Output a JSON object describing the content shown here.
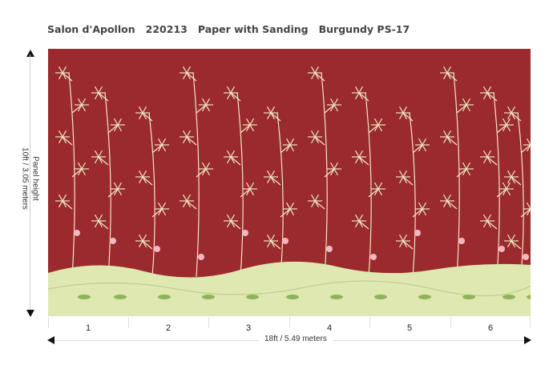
{
  "header": {
    "title": "Salon d'Apollon   220213   Paper with Sanding   Burgundy PS-17"
  },
  "dimensions": {
    "height_label": "Panel height",
    "height_value": "10ft / 3.05 meters",
    "width_value": "18ft / 5.49 meters"
  },
  "panels": [
    "1",
    "2",
    "3",
    "4",
    "5",
    "6"
  ],
  "colors": {
    "background": "#9b2a2e",
    "ground": "#dfe8b0",
    "foliage": "#f3ecc8"
  }
}
